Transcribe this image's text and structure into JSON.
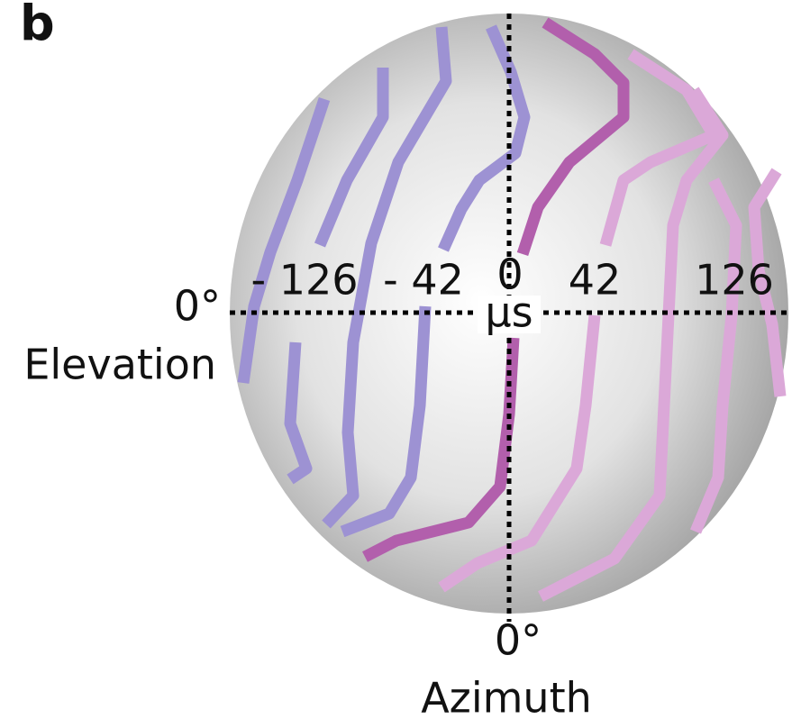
{
  "panel_label": "b",
  "delay_labels": [
    "- 126",
    "- 42",
    "0",
    "42",
    "126"
  ],
  "delay_unit": "µs",
  "elevation": {
    "angle": "0°",
    "label": "Elevation"
  },
  "azimuth": {
    "angle": "0°",
    "label": "Azimuth"
  }
}
